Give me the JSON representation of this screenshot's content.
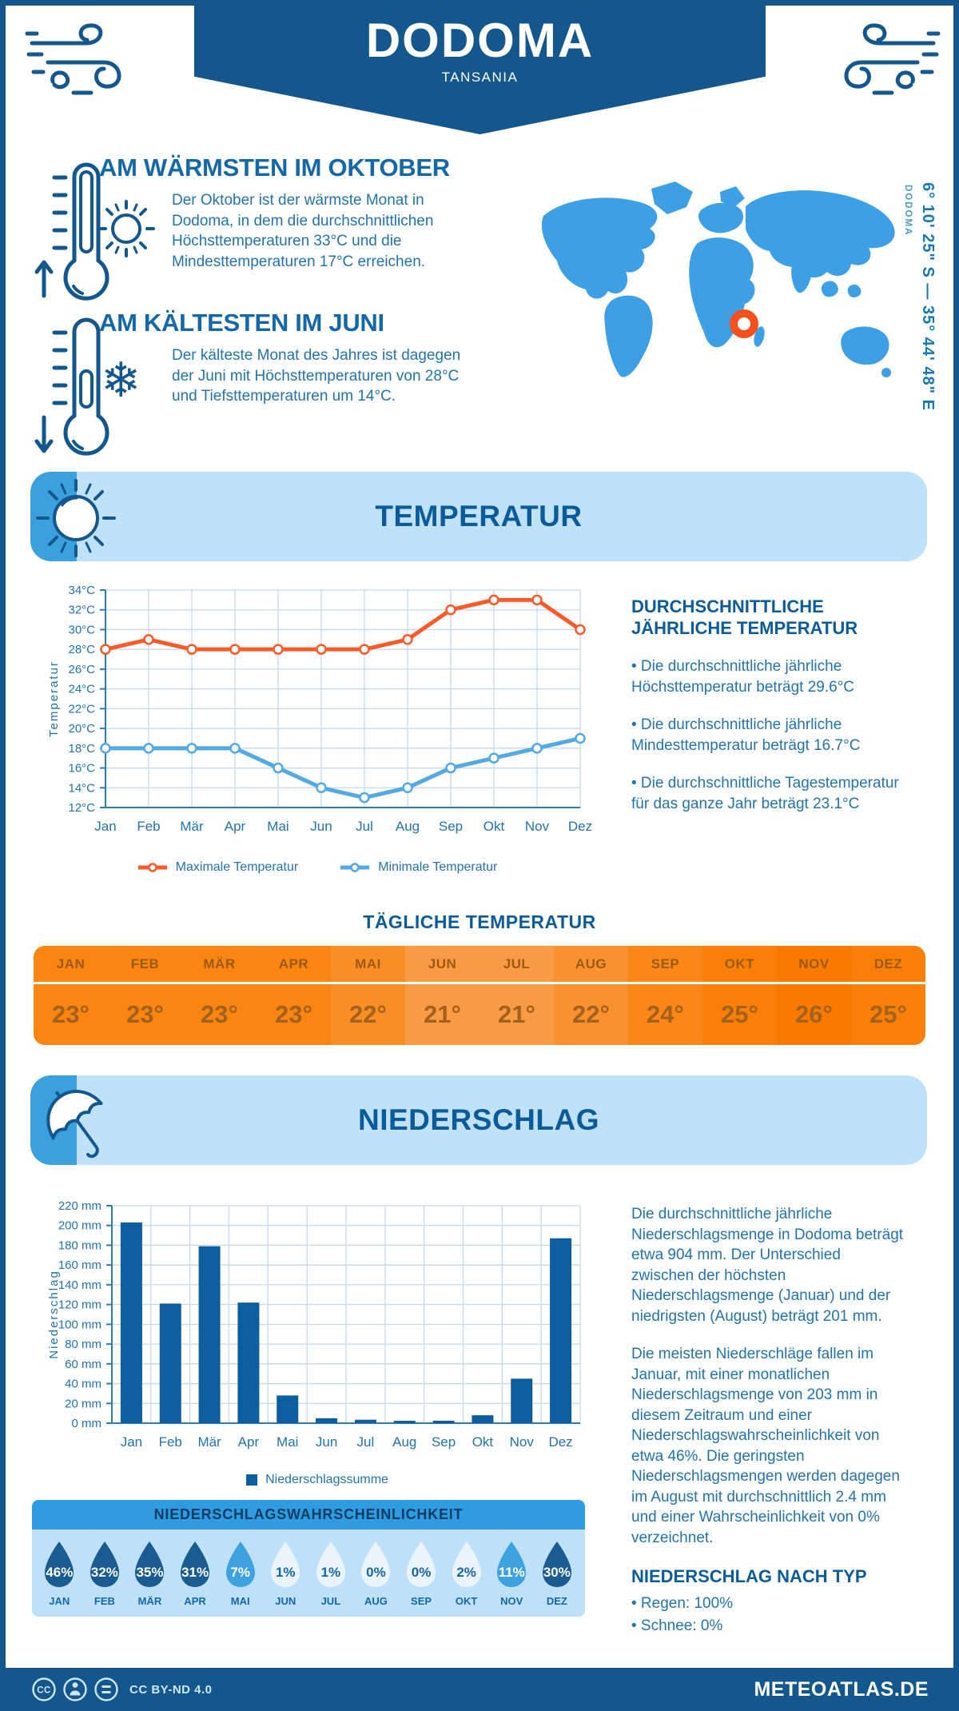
{
  "header": {
    "title": "DODOMA",
    "subtitle": "TANSANIA"
  },
  "location": {
    "coordinates": "6° 10' 25\" S — 35° 44' 48\" E",
    "city": "DODOMA"
  },
  "highlights": {
    "warmest": {
      "title": "AM WÄRMSTEN IM OKTOBER",
      "text": "Der Oktober ist der wärmste Monat in Dodoma, in dem die durchschnittlichen Höchsttemperaturen 33°C und die Mindesttemperaturen 17°C erreichen."
    },
    "coldest": {
      "title": "AM KÄLTESTEN IM JUNI",
      "text": "Der kälteste Monat des Jahres ist dagegen der Juni mit Höchsttemperaturen von 28°C und Tiefsttemperaturen um 14°C."
    }
  },
  "temperature_section": {
    "title": "TEMPERATUR",
    "sidebar_title": "DURCHSCHNITTLICHE JÄHRLICHE TEMPERATUR",
    "bullets": [
      "• Die durchschnittliche jährliche Höchsttemperatur beträgt 29.6°C",
      "• Die durchschnittliche jährliche Mindesttemperatur beträgt 16.7°C",
      "• Die durchschnittliche Tagestemperatur für das ganze Jahr beträgt 23.1°C"
    ],
    "legend_max": "Maximale Temperatur",
    "legend_min": "Minimale Temperatur",
    "daily": {
      "title": "TÄGLICHE TEMPERATUR",
      "months": [
        "JAN",
        "FEB",
        "MÄR",
        "APR",
        "MAI",
        "JUN",
        "JUL",
        "AUG",
        "SEP",
        "OKT",
        "NOV",
        "DEZ"
      ],
      "values": [
        "23°",
        "23°",
        "23°",
        "23°",
        "22°",
        "21°",
        "21°",
        "22°",
        "24°",
        "25°",
        "26°",
        "25°"
      ],
      "cell_colors": [
        "#FA8512",
        "#FA8512",
        "#FA8512",
        "#FA8512",
        "#FA8E26",
        "#F99B45",
        "#F99B45",
        "#FA9130",
        "#FA8718",
        "#FA7F06",
        "#FA7A00",
        "#FA7F06"
      ]
    }
  },
  "precipitation_section": {
    "title": "NIEDERSCHLAG",
    "paragraphs": [
      "Die durchschnittliche jährliche Niederschlagsmenge in Dodoma beträgt etwa 904 mm. Der Unterschied zwischen der höchsten Niederschlagsmenge (Januar) und der niedrigsten (August) beträgt 201 mm.",
      "Die meisten Niederschläge fallen im Januar, mit einer monatlichen Niederschlagsmenge von 203 mm in diesem Zeitraum und einer Niederschlagswahrscheinlichkeit von etwa 46%. Die geringsten Niederschlagsmengen werden dagegen im August mit durchschnittlich 2.4 mm und einer Wahrscheinlichkeit von 0% verzeichnet."
    ],
    "legend": "Niederschlagssumme",
    "type_title": "NIEDERSCHLAG NACH TYP",
    "type_bullets": [
      "• Regen: 100%",
      "• Schnee: 0%"
    ],
    "probability": {
      "title": "NIEDERSCHLAGSWAHRSCHEINLICHKEIT",
      "months": [
        "JAN",
        "FEB",
        "MÄR",
        "APR",
        "MAI",
        "JUN",
        "JUL",
        "AUG",
        "SEP",
        "OKT",
        "NOV",
        "DEZ"
      ],
      "values": [
        46,
        32,
        35,
        31,
        7,
        1,
        1,
        0,
        0,
        2,
        11,
        30
      ],
      "drop_colors": {
        "dark": "#1A5C8F",
        "mid": "#3FA2E0",
        "light": "#EAF4FC"
      }
    }
  },
  "chart_data": [
    {
      "type": "line",
      "title": "Temperatur Jahresverlauf",
      "ylabel": "Temperatur",
      "categories": [
        "Jan",
        "Feb",
        "Mär",
        "Apr",
        "Mai",
        "Jun",
        "Jul",
        "Aug",
        "Sep",
        "Okt",
        "Nov",
        "Dez"
      ],
      "series": [
        {
          "name": "Maximale Temperatur",
          "color": "#F95B2B",
          "values": [
            28,
            29,
            28,
            28,
            28,
            28,
            28,
            29,
            32,
            33,
            33,
            30
          ]
        },
        {
          "name": "Minimale Temperatur",
          "color": "#54A9E0",
          "values": [
            18,
            18,
            18,
            18,
            16,
            14,
            13,
            14,
            16,
            17,
            18,
            19
          ]
        }
      ],
      "ylim": [
        12,
        34
      ],
      "ytick_step": 2,
      "ytick_suffix": "°C",
      "grid": true,
      "legend_position": "bottom"
    },
    {
      "type": "bar",
      "title": "Niederschlagssumme",
      "ylabel": "Niederschlag",
      "categories": [
        "Jan",
        "Feb",
        "Mär",
        "Apr",
        "Mai",
        "Jun",
        "Jul",
        "Aug",
        "Sep",
        "Okt",
        "Nov",
        "Dez"
      ],
      "values": [
        203,
        121,
        179,
        122,
        28,
        5,
        3.5,
        2.4,
        2.5,
        8,
        45,
        187
      ],
      "ylim": [
        0,
        220
      ],
      "ytick_step": 20,
      "ytick_suffix": " mm",
      "bar_color": "#0D5E9F",
      "grid": true,
      "legend_position": "bottom"
    }
  ],
  "footer": {
    "license": "CC BY-ND 4.0",
    "site": "METEOATLAS.DE"
  },
  "colors": {
    "navy": "#14578C",
    "headline": "#1568A8",
    "body_text": "#2473AC",
    "section_title": "#0C5B99",
    "banner_bg": "#BFE1F9",
    "banner_accent": "#3BA0DE",
    "map_blue": "#3D9FE4",
    "marker_orange": "#F4511E",
    "max_line": "#F95B2B",
    "min_line": "#54A9E0",
    "bar_blue": "#0D5E9F",
    "prob_header": "#2F9BE0",
    "prob_bg": "#BEE0F9"
  }
}
